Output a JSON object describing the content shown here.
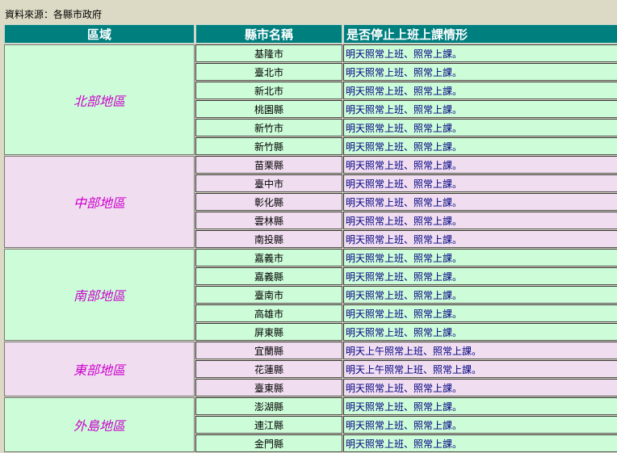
{
  "source_label": "資料來源：各縣市政府",
  "headers": {
    "region": "區域",
    "county": "縣市名稱",
    "status": "是否停止上班上課情形"
  },
  "colors": {
    "header_bg": "#007f7f",
    "green_row": "#ccfdd8",
    "pink_row": "#f0ddf0",
    "region_text": "#cc00cc",
    "status_text": "#000080"
  },
  "regions": [
    {
      "name": "北部地區",
      "tone": "g",
      "rows": [
        {
          "county": "基隆市",
          "status": "明天照常上班、照常上課。"
        },
        {
          "county": "臺北市",
          "status": "明天照常上班、照常上課。"
        },
        {
          "county": "新北市",
          "status": "明天照常上班、照常上課。"
        },
        {
          "county": "桃園縣",
          "status": "明天照常上班、照常上課。"
        },
        {
          "county": "新竹市",
          "status": "明天照常上班、照常上課。"
        },
        {
          "county": "新竹縣",
          "status": "明天照常上班、照常上課。"
        }
      ]
    },
    {
      "name": "中部地區",
      "tone": "p",
      "rows": [
        {
          "county": "苗栗縣",
          "status": "明天照常上班、照常上課。"
        },
        {
          "county": "臺中市",
          "status": "明天照常上班、照常上課。"
        },
        {
          "county": "彰化縣",
          "status": "明天照常上班、照常上課。"
        },
        {
          "county": "雲林縣",
          "status": "明天照常上班、照常上課。"
        },
        {
          "county": "南投縣",
          "status": "明天照常上班、照常上課。"
        }
      ]
    },
    {
      "name": "南部地區",
      "tone": "g",
      "rows": [
        {
          "county": "嘉義市",
          "status": "明天照常上班、照常上課。"
        },
        {
          "county": "嘉義縣",
          "status": "明天照常上班、照常上課。"
        },
        {
          "county": "臺南市",
          "status": "明天照常上班、照常上課。"
        },
        {
          "county": "高雄市",
          "status": "明天照常上班、照常上課。"
        },
        {
          "county": "屏東縣",
          "status": "明天照常上班、照常上課。"
        }
      ]
    },
    {
      "name": "東部地區",
      "tone": "p",
      "rows": [
        {
          "county": "宜蘭縣",
          "status": "明天上午照常上班、照常上課。"
        },
        {
          "county": "花蓮縣",
          "status": "明天上午照常上班、照常上課。"
        },
        {
          "county": "臺東縣",
          "status": "明天照常上班、照常上課。"
        }
      ]
    },
    {
      "name": "外島地區",
      "tone": "g",
      "rows": [
        {
          "county": "澎湖縣",
          "status": "明天照常上班、照常上課。"
        },
        {
          "county": "連江縣",
          "status": "明天照常上班、照常上課。"
        },
        {
          "county": "金門縣",
          "status": "明天照常上班、照常上課。"
        }
      ]
    }
  ]
}
